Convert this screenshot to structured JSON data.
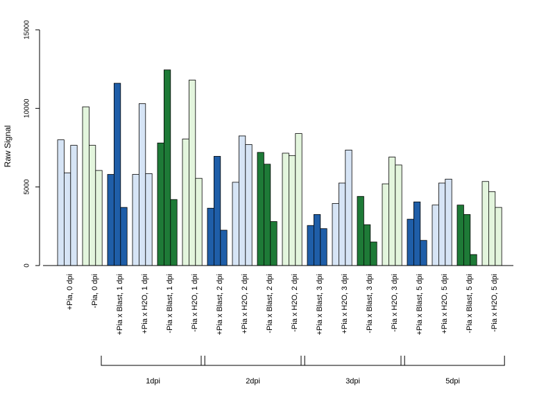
{
  "chart_data": {
    "type": "bar",
    "ylabel": "Raw Signal",
    "ylim": [
      0,
      15000
    ],
    "yticks": [
      "0",
      "5000",
      "10000",
      "15000"
    ],
    "grid": false,
    "colors": {
      "pia_pos_control": "#d6e4f5",
      "pia_neg_control": "#e3f5dd",
      "pia_pos_blast": "#1f5ea8",
      "pia_neg_blast": "#1e7a37",
      "outline": "#000000"
    },
    "categories": [
      {
        "label": "+Pia, 0 dpi",
        "color_key": "pia_pos_control",
        "values": [
          8000,
          5900,
          7650
        ]
      },
      {
        "label": "-Pia, 0 dpi",
        "color_key": "pia_neg_control",
        "values": [
          10100,
          7650,
          6050
        ]
      },
      {
        "label": "+Pia x Blast, 1 dpi",
        "color_key": "pia_pos_blast",
        "values": [
          5800,
          11600,
          3700
        ]
      },
      {
        "label": "+Pia x H2O, 1 dpi",
        "color_key": "pia_pos_control",
        "values": [
          5800,
          10300,
          5850
        ]
      },
      {
        "label": "-Pia x Blast, 1 dpi",
        "color_key": "pia_neg_blast",
        "values": [
          7800,
          12450,
          4200
        ]
      },
      {
        "label": "-Pia x H2O, 1 dpi",
        "color_key": "pia_neg_control",
        "values": [
          8050,
          11800,
          5550
        ]
      },
      {
        "label": "+Pia x Blast, 2 dpi",
        "color_key": "pia_pos_blast",
        "values": [
          3650,
          6950,
          2250
        ]
      },
      {
        "label": "+Pia x H2O, 2 dpi",
        "color_key": "pia_pos_control",
        "values": [
          5300,
          8250,
          7700
        ]
      },
      {
        "label": "-Pia x Blast, 2 dpi",
        "color_key": "pia_neg_blast",
        "values": [
          7200,
          6450,
          2800
        ]
      },
      {
        "label": "-Pia x H2O, 2 dpi",
        "color_key": "pia_neg_control",
        "values": [
          7150,
          7000,
          8400
        ]
      },
      {
        "label": "+Pia x Blast, 3 dpi",
        "color_key": "pia_pos_blast",
        "values": [
          2550,
          3250,
          2350
        ]
      },
      {
        "label": "+Pia x H2O, 3 dpi",
        "color_key": "pia_pos_control",
        "values": [
          3950,
          5250,
          7350
        ]
      },
      {
        "label": "-Pia x Blast, 3 dpi",
        "color_key": "pia_neg_blast",
        "values": [
          4400,
          2600,
          1500
        ]
      },
      {
        "label": "-Pia x H2O, 3 dpi",
        "color_key": "pia_neg_control",
        "values": [
          5200,
          6900,
          6400
        ]
      },
      {
        "label": "+Pia x Blast, 5 dpi",
        "color_key": "pia_pos_blast",
        "values": [
          2950,
          4050,
          1600
        ]
      },
      {
        "label": "+Pia x H2O, 5 dpi",
        "color_key": "pia_pos_control",
        "values": [
          3850,
          5250,
          5500
        ]
      },
      {
        "label": "-Pia x Blast, 5 dpi",
        "color_key": "pia_neg_blast",
        "values": [
          3850,
          3250,
          700
        ]
      },
      {
        "label": "-Pia x H2O, 5 dpi",
        "color_key": "pia_neg_control",
        "values": [
          5350,
          4700,
          3700
        ]
      }
    ],
    "groups": [
      {
        "label": "1dpi",
        "from": 2,
        "to": 5
      },
      {
        "label": "2dpi",
        "from": 6,
        "to": 9
      },
      {
        "label": "3dpi",
        "from": 10,
        "to": 13
      },
      {
        "label": "5dpi",
        "from": 14,
        "to": 17
      }
    ]
  }
}
